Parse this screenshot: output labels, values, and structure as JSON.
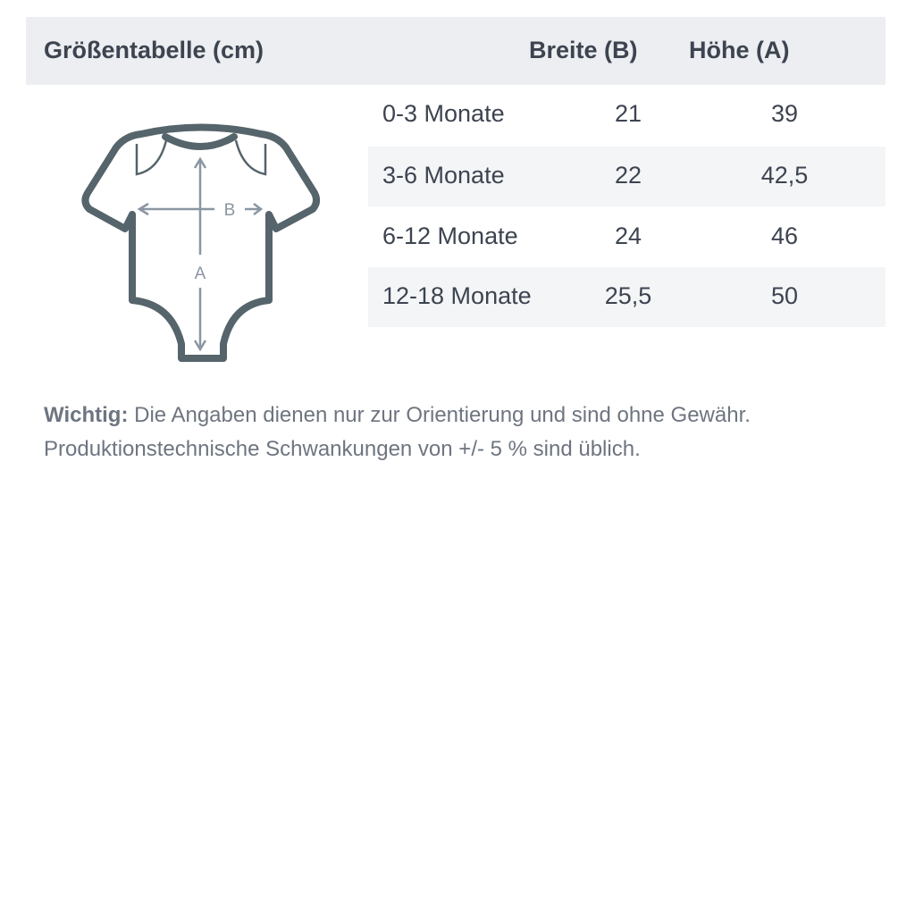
{
  "header": {
    "title": "Größentabelle (cm)",
    "col_width": "Breite (B)",
    "col_height": "Höhe (A)"
  },
  "rows": [
    {
      "size": "0-3 Monate",
      "width": "21",
      "height": "39"
    },
    {
      "size": "3-6 Monate",
      "width": "22",
      "height": "42,5"
    },
    {
      "size": "6-12 Monate",
      "width": "24",
      "height": "46"
    },
    {
      "size": "12-18 Monate",
      "width": "25,5",
      "height": "50"
    }
  ],
  "diagram": {
    "label_b": "B",
    "label_a": "A",
    "icon": "baby-bodysuit-icon"
  },
  "note": {
    "bold": "Wichtig:",
    "line1": " Die Angaben dienen nur zur Orientierung und sind ohne Gewähr.",
    "line2": "Produktionstechnische Schwankungen von +/- 5 % sind üblich."
  }
}
